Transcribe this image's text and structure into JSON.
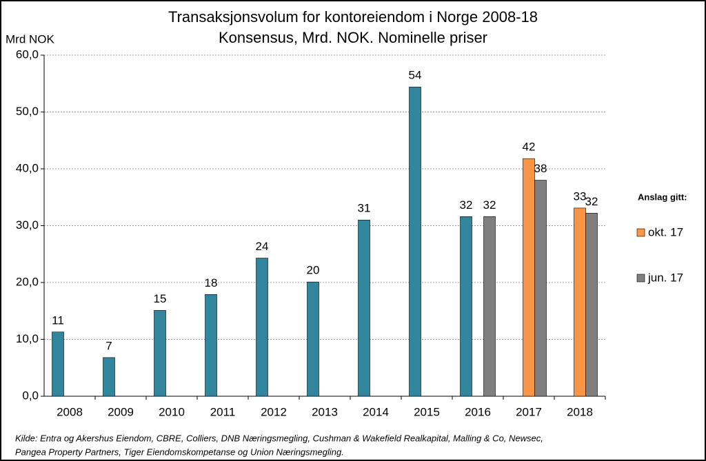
{
  "chart_data": {
    "type": "bar",
    "title": "Transaksjonsvolum for kontoreiendom i Norge 2008-18",
    "subtitle": "Konsensus, Mrd. NOK. Nominelle priser",
    "y_label": "Mrd NOK",
    "categories": [
      "2008",
      "2009",
      "2010",
      "2011",
      "2012",
      "2013",
      "2014",
      "2015",
      "2016",
      "2017",
      "2018"
    ],
    "series": [
      {
        "color": "#31859c",
        "values": [
          11.3,
          6.8,
          15.1,
          17.9,
          24.3,
          20.1,
          31.0,
          54.4,
          31.6,
          null,
          null
        ],
        "value_labels": [
          "11",
          "7",
          "15",
          "18",
          "24",
          "20",
          "31",
          "54",
          "32",
          null,
          null
        ]
      },
      {
        "name": "okt. 17",
        "color": "#f79646",
        "values": [
          null,
          null,
          null,
          null,
          null,
          null,
          null,
          null,
          null,
          41.8,
          33.1
        ],
        "value_labels": [
          null,
          null,
          null,
          null,
          null,
          null,
          null,
          null,
          null,
          "42",
          "33"
        ]
      },
      {
        "name": "jun. 17",
        "color": "#7f7f7f",
        "values": [
          null,
          null,
          null,
          null,
          null,
          null,
          null,
          null,
          31.6,
          38.0,
          32.2
        ],
        "value_labels": [
          null,
          null,
          null,
          null,
          null,
          null,
          null,
          null,
          "32",
          "38",
          "32"
        ]
      }
    ],
    "legend_title": "Anslag gitt:",
    "legend_position": "right",
    "ylim": [
      0,
      60
    ],
    "yticks": [
      {
        "value": 0,
        "label": "0,0"
      },
      {
        "value": 10,
        "label": "10,0"
      },
      {
        "value": 20,
        "label": "20,0"
      },
      {
        "value": 30,
        "label": "30,0"
      },
      {
        "value": 40,
        "label": "40,0"
      },
      {
        "value": 50,
        "label": "50,0"
      },
      {
        "value": 60,
        "label": "60,0"
      }
    ],
    "grid": true,
    "source": "Kilde: Entra og Akershus Eiendom, CBRE, Colliers, DNB Næringsmegling, Cushman & Wakefield Realkapital, Malling & Co, Newsec,",
    "source_2": "Pangea Property Partners, Tiger Eiendomskompetanse og Union Næringsmegling."
  }
}
